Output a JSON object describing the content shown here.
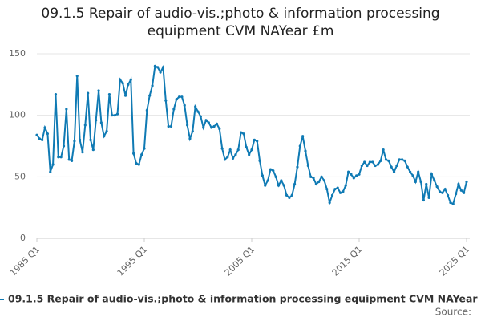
{
  "chart_data": {
    "type": "line",
    "title": "09.1.5 Repair of audio-vis.;photo & information processing equipment CVM NAYear £m",
    "categories": [
      "1985 Q1",
      null,
      null,
      null,
      null,
      null,
      null,
      null,
      null,
      null,
      null,
      null,
      null,
      null,
      null,
      null,
      null,
      null,
      null,
      null,
      null,
      null,
      null,
      null,
      null,
      null,
      null,
      null,
      null,
      null,
      null,
      null,
      null,
      null,
      null,
      null,
      null,
      null,
      null,
      null,
      "1995 Q1",
      null,
      null,
      null,
      null,
      null,
      null,
      null,
      null,
      null,
      null,
      null,
      null,
      null,
      null,
      null,
      null,
      null,
      null,
      null,
      null,
      null,
      null,
      null,
      null,
      null,
      null,
      null,
      null,
      null,
      null,
      null,
      null,
      null,
      null,
      null,
      null,
      null,
      null,
      null,
      "2005 Q1",
      null,
      null,
      null,
      null,
      null,
      null,
      null,
      null,
      null,
      null,
      null,
      null,
      null,
      null,
      null,
      null,
      null,
      null,
      null,
      null,
      null,
      null,
      null,
      null,
      null,
      null,
      null,
      null,
      null,
      null,
      null,
      null,
      null,
      null,
      null,
      null,
      null,
      null,
      null,
      "2015 Q1",
      null,
      null,
      null,
      null,
      null,
      null,
      null,
      null,
      null,
      null,
      null,
      null,
      null,
      null,
      null,
      null,
      null,
      null,
      null,
      null,
      null,
      null,
      null,
      null,
      null,
      null,
      null,
      null,
      null,
      null,
      null,
      null,
      null,
      null,
      null,
      null,
      null,
      null,
      null,
      "2025 Q1"
    ],
    "series": [
      {
        "name": "09.1.5 Repair of audio-vis.;photo & information processing equipment CVM NAYear £m",
        "color": "#0f7ab4",
        "values": [
          84,
          81,
          80,
          90,
          85,
          54,
          60,
          117,
          66,
          66,
          75,
          105,
          64,
          63,
          79,
          132,
          80,
          70,
          92,
          118,
          80,
          72,
          96,
          120,
          94,
          83,
          87,
          117,
          100,
          100,
          101,
          129,
          126,
          116,
          125,
          129,
          69,
          61,
          60,
          68,
          73,
          104,
          116,
          124,
          140,
          139,
          135,
          139,
          112,
          91,
          91,
          105,
          113,
          115,
          115,
          108,
          92,
          81,
          87,
          107,
          103,
          99,
          90,
          96,
          94,
          90,
          91,
          93,
          89,
          73,
          64,
          66,
          72,
          65,
          68,
          72,
          86,
          85,
          74,
          68,
          72,
          80,
          79,
          63,
          51,
          43,
          47,
          56,
          55,
          50,
          43,
          47,
          43,
          35,
          33,
          35,
          44,
          58,
          75,
          83,
          71,
          59,
          50,
          49,
          44,
          46,
          50,
          47,
          40,
          29,
          35,
          40,
          41,
          37,
          38,
          43,
          54,
          52,
          49,
          51,
          52,
          59,
          62,
          59,
          62,
          62,
          59,
          60,
          63,
          72,
          64,
          63,
          58,
          54,
          59,
          64,
          64,
          63,
          58,
          54,
          51,
          46,
          54,
          46,
          31,
          44,
          33,
          52,
          47,
          42,
          38,
          37,
          40,
          35,
          29,
          28,
          36,
          44,
          39,
          37,
          46
        ]
      }
    ],
    "ylim": [
      0,
      150
    ],
    "yticks": [
      0,
      50,
      100,
      150
    ],
    "grid": true,
    "source": "Source:"
  }
}
